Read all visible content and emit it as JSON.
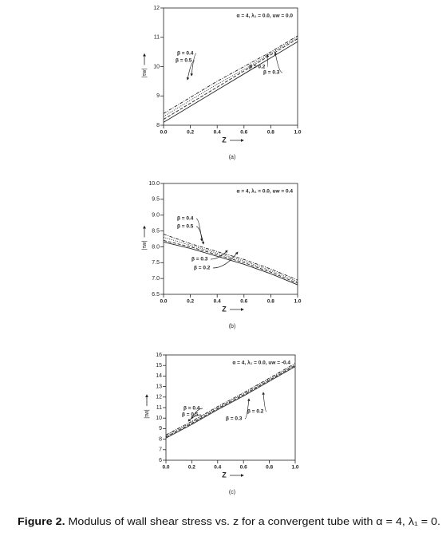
{
  "chart_data": [
    {
      "type": "line",
      "panel": "(a)",
      "annotation": "α = 4, λ₁ = 0.0, uw = 0.0",
      "x_label": "Z",
      "y_label": "|τw|",
      "x": [
        0,
        0.2,
        0.4,
        0.6,
        0.8,
        1.0
      ],
      "xlim": [
        0,
        1
      ],
      "xticks": [
        {
          "value": 0,
          "label": "0.0"
        },
        0.2,
        0.4,
        0.6,
        0.8,
        {
          "value": 1,
          "label": "1.0"
        }
      ],
      "ylim": [
        8,
        12
      ],
      "yticks": [
        8,
        9,
        10,
        11,
        12
      ],
      "series": [
        {
          "name": "β = 0.2",
          "color": "#222222",
          "style": "solid",
          "values": [
            8.1,
            8.65,
            9.2,
            9.75,
            10.3,
            10.85
          ]
        },
        {
          "name": "β = 0.3",
          "color": "#222222",
          "style": "dashed",
          "values": [
            8.2,
            8.75,
            9.3,
            9.85,
            10.4,
            10.95
          ]
        },
        {
          "name": "β = 0.4",
          "color": "#222222",
          "style": "dotted",
          "values": [
            8.3,
            8.85,
            9.4,
            9.9,
            10.45,
            11.0
          ]
        },
        {
          "name": "β = 0.5",
          "color": "#222222",
          "style": "dashdot",
          "values": [
            8.4,
            8.95,
            9.5,
            10.0,
            10.5,
            11.05
          ]
        }
      ]
    },
    {
      "type": "line",
      "panel": "(b)",
      "annotation": "α = 4, λ₁ = 0.0, uw = 0.4",
      "x_label": "Z",
      "y_label": "|τw|",
      "x": [
        0,
        0.2,
        0.4,
        0.6,
        0.8,
        1.0
      ],
      "xlim": [
        0,
        1
      ],
      "xticks": [
        {
          "value": 0,
          "label": "0.0"
        },
        0.2,
        0.4,
        0.6,
        0.8,
        {
          "value": 1,
          "label": "1.0"
        }
      ],
      "ylim": [
        6.5,
        10
      ],
      "yticks": [
        6.5,
        {
          "value": 7,
          "label": "7.0"
        },
        7.5,
        {
          "value": 8,
          "label": "8.0"
        },
        8.5,
        {
          "value": 9,
          "label": "9.0"
        },
        9.5,
        {
          "value": 10,
          "label": "10.0"
        }
      ],
      "series": [
        {
          "name": "β = 0.2",
          "color": "#222222",
          "style": "solid",
          "values": [
            8.15,
            7.95,
            7.7,
            7.45,
            7.15,
            6.8
          ]
        },
        {
          "name": "β = 0.3",
          "color": "#222222",
          "style": "dashed",
          "values": [
            8.2,
            8.0,
            7.75,
            7.5,
            7.2,
            6.85
          ]
        },
        {
          "name": "β = 0.4",
          "color": "#222222",
          "style": "dotted",
          "values": [
            8.3,
            8.05,
            7.8,
            7.55,
            7.25,
            6.9
          ]
        },
        {
          "name": "β = 0.5",
          "color": "#222222",
          "style": "dashdot",
          "values": [
            8.4,
            8.1,
            7.85,
            7.6,
            7.3,
            6.95
          ]
        }
      ]
    },
    {
      "type": "line",
      "panel": "(c)",
      "annotation": "α = 4, λ₁ = 0.0, uw = -0.4",
      "x_label": "Z",
      "y_label": "|τw|",
      "x": [
        0,
        0.2,
        0.4,
        0.6,
        0.8,
        1.0
      ],
      "xlim": [
        0,
        1
      ],
      "xticks": [
        {
          "value": 0,
          "label": "0.0"
        },
        0.2,
        0.4,
        0.6,
        0.8,
        {
          "value": 1,
          "label": "1.0"
        }
      ],
      "ylim": [
        6,
        16
      ],
      "yticks": [
        6,
        7,
        8,
        9,
        10,
        11,
        12,
        13,
        14,
        15,
        16
      ],
      "series": [
        {
          "name": "β = 0.2",
          "color": "#222222",
          "style": "solid",
          "values": [
            8.1,
            9.4,
            10.8,
            12.1,
            13.5,
            14.9
          ]
        },
        {
          "name": "β = 0.3",
          "color": "#222222",
          "style": "dashed",
          "values": [
            8.2,
            9.5,
            10.9,
            12.2,
            13.6,
            15.0
          ]
        },
        {
          "name": "β = 0.4",
          "color": "#222222",
          "style": "dotted",
          "values": [
            8.3,
            9.6,
            11.0,
            12.3,
            13.7,
            15.1
          ]
        },
        {
          "name": "β = 0.5",
          "color": "#222222",
          "style": "dashdot",
          "values": [
            8.4,
            9.7,
            11.1,
            12.4,
            13.8,
            15.2
          ]
        }
      ]
    }
  ],
  "caption": {
    "label": "Figure 2.",
    "text": " Modulus of wall shear stress vs. z for a convergent tube with α = 4, λ₁ = 0."
  }
}
